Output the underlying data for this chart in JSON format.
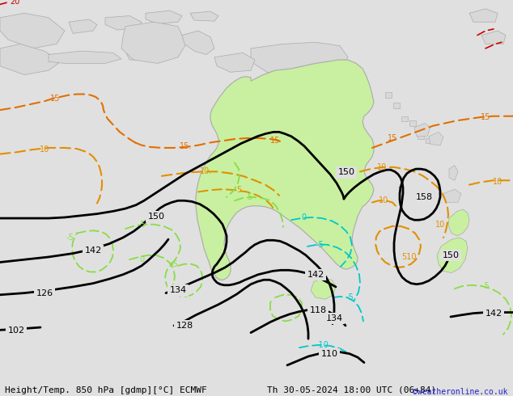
{
  "title_left": "Height/Temp. 850 hPa [gdmp][°C] ECMWF",
  "title_right": "Th 30-05-2024 18:00 UTC (06+84)",
  "watermark": "©weatheronline.co.uk",
  "bg_color": "#e0e0e0",
  "land_color": "#d8d8d8",
  "australia_color": "#c8f0a0",
  "australia_stroke": "#aaaaaa",
  "height_contour_color": "#000000",
  "height_contour_width": 2.0,
  "temp_pos_color15": "#e07000",
  "temp_pos_color10": "#e09000",
  "temp_neg_color": "#00c8c8",
  "temp_zero_color": "#88dd44",
  "temp_red_color": "#cc0000",
  "label_fontsize": 7,
  "title_fontsize": 8,
  "watermark_fontsize": 7,
  "figsize": [
    6.34,
    4.9
  ],
  "dpi": 100,
  "xlim": [
    0,
    634
  ],
  "ylim": [
    450,
    0
  ]
}
